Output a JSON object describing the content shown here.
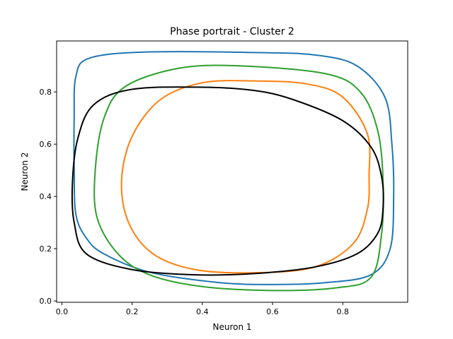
{
  "chart_data": {
    "type": "line",
    "title": "Phase portrait - Cluster 2",
    "xlabel": "Neuron 1",
    "ylabel": "Neuron 2",
    "xlim": [
      -0.015,
      0.985
    ],
    "ylim": [
      -0.005,
      0.995
    ],
    "xticks": [
      0.0,
      0.2,
      0.4,
      0.6,
      0.8
    ],
    "yticks": [
      0.0,
      0.2,
      0.4,
      0.6,
      0.8
    ],
    "xtick_labels": [
      "0.0",
      "0.2",
      "0.4",
      "0.6",
      "0.8"
    ],
    "ytick_labels": [
      "0.0",
      "0.2",
      "0.4",
      "0.6",
      "0.8"
    ],
    "grid": false,
    "series": [
      {
        "color": "#1f77b4",
        "points": [
          [
            0.58,
            0.95
          ],
          [
            0.25,
            0.953
          ],
          [
            0.08,
            0.93
          ],
          [
            0.04,
            0.86
          ],
          [
            0.035,
            0.7
          ],
          [
            0.035,
            0.5
          ],
          [
            0.04,
            0.33
          ],
          [
            0.07,
            0.24
          ],
          [
            0.12,
            0.18
          ],
          [
            0.25,
            0.11
          ],
          [
            0.45,
            0.07
          ],
          [
            0.6,
            0.063
          ],
          [
            0.75,
            0.07
          ],
          [
            0.88,
            0.1
          ],
          [
            0.935,
            0.2
          ],
          [
            0.945,
            0.4
          ],
          [
            0.94,
            0.6
          ],
          [
            0.92,
            0.78
          ],
          [
            0.84,
            0.9
          ],
          [
            0.73,
            0.94
          ],
          [
            0.58,
            0.95
          ]
        ]
      },
      {
        "color": "#ff7f0e",
        "points": [
          [
            0.55,
            0.842
          ],
          [
            0.4,
            0.835
          ],
          [
            0.28,
            0.77
          ],
          [
            0.2,
            0.63
          ],
          [
            0.17,
            0.46
          ],
          [
            0.19,
            0.3
          ],
          [
            0.26,
            0.18
          ],
          [
            0.38,
            0.12
          ],
          [
            0.55,
            0.108
          ],
          [
            0.72,
            0.13
          ],
          [
            0.83,
            0.22
          ],
          [
            0.87,
            0.35
          ],
          [
            0.875,
            0.48
          ],
          [
            0.87,
            0.64
          ],
          [
            0.8,
            0.78
          ],
          [
            0.7,
            0.83
          ],
          [
            0.55,
            0.842
          ]
        ]
      },
      {
        "color": "#2ca02c",
        "points": [
          [
            0.5,
            0.9
          ],
          [
            0.33,
            0.89
          ],
          [
            0.18,
            0.82
          ],
          [
            0.12,
            0.7
          ],
          [
            0.095,
            0.5
          ],
          [
            0.1,
            0.32
          ],
          [
            0.16,
            0.18
          ],
          [
            0.25,
            0.1
          ],
          [
            0.4,
            0.055
          ],
          [
            0.6,
            0.04
          ],
          [
            0.78,
            0.05
          ],
          [
            0.88,
            0.09
          ],
          [
            0.91,
            0.25
          ],
          [
            0.915,
            0.45
          ],
          [
            0.9,
            0.65
          ],
          [
            0.85,
            0.8
          ],
          [
            0.75,
            0.87
          ],
          [
            0.5,
            0.9
          ]
        ]
      },
      {
        "color": "#000000",
        "points": [
          [
            0.4,
            0.818
          ],
          [
            0.2,
            0.81
          ],
          [
            0.09,
            0.75
          ],
          [
            0.045,
            0.62
          ],
          [
            0.03,
            0.45
          ],
          [
            0.035,
            0.3
          ],
          [
            0.07,
            0.18
          ],
          [
            0.2,
            0.12
          ],
          [
            0.38,
            0.1
          ],
          [
            0.55,
            0.105
          ],
          [
            0.72,
            0.13
          ],
          [
            0.84,
            0.18
          ],
          [
            0.9,
            0.26
          ],
          [
            0.915,
            0.36
          ],
          [
            0.91,
            0.48
          ],
          [
            0.88,
            0.59
          ],
          [
            0.8,
            0.69
          ],
          [
            0.66,
            0.77
          ],
          [
            0.55,
            0.805
          ],
          [
            0.4,
            0.818
          ]
        ]
      }
    ]
  }
}
